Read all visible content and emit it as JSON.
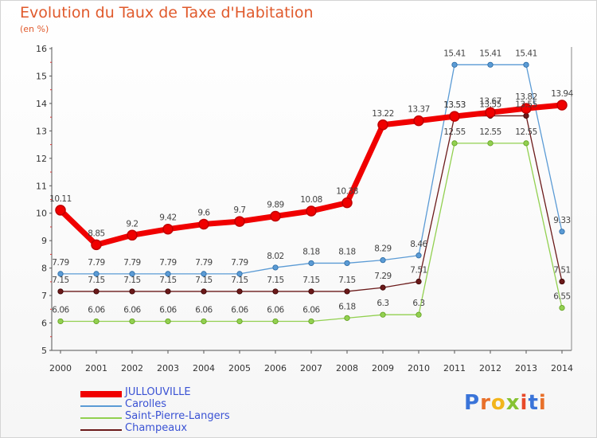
{
  "title": "Evolution du Taux de Taxe d'Habitation",
  "unit_label": "(en %)",
  "logo": {
    "letters": [
      "P",
      "r",
      "o",
      "x",
      "i",
      "t",
      "i"
    ],
    "colors": [
      "#3a74d9",
      "#e8702a",
      "#f2b51c",
      "#86c232",
      "#e84a2a",
      "#3a74d9",
      "#e8702a"
    ]
  },
  "chart_data": {
    "type": "line",
    "title": "Evolution du Taux de Taxe d'Habitation",
    "ylabel": "(en %)",
    "xlabel": "",
    "ylim": [
      5,
      16
    ],
    "yticks": [
      5,
      6,
      7,
      8,
      9,
      10,
      11,
      12,
      13,
      14,
      15,
      16
    ],
    "grid": false,
    "legend_position": "bottom-left",
    "x": [
      "2000",
      "2001",
      "2002",
      "2003",
      "2004",
      "2005",
      "2006",
      "2007",
      "2008",
      "2009",
      "2010",
      "2011",
      "2012",
      "2013",
      "2014"
    ],
    "series": [
      {
        "name": "JULLOUVILLE",
        "color": "#f00000",
        "width": 7,
        "marker": 6,
        "values": [
          10.11,
          8.85,
          9.2,
          9.42,
          9.6,
          9.7,
          9.89,
          10.08,
          10.38,
          13.22,
          13.37,
          13.53,
          13.67,
          13.82,
          13.94
        ]
      },
      {
        "name": "Carolles",
        "color": "#5b9bd5",
        "width": 1.3,
        "marker": 3.2,
        "values": [
          7.79,
          7.79,
          7.79,
          7.79,
          7.79,
          7.79,
          8.02,
          8.18,
          8.18,
          8.29,
          8.46,
          15.41,
          15.41,
          15.41,
          9.33
        ]
      },
      {
        "name": "Saint-Pierre-Langers",
        "color": "#92d050",
        "width": 1.3,
        "marker": 3.2,
        "values": [
          6.06,
          6.06,
          6.06,
          6.06,
          6.06,
          6.06,
          6.06,
          6.06,
          6.18,
          6.3,
          6.3,
          12.55,
          12.55,
          12.55,
          6.55
        ]
      },
      {
        "name": "Champeaux",
        "color": "#6b1a1a",
        "width": 1.3,
        "marker": 3.2,
        "values": [
          7.15,
          7.15,
          7.15,
          7.15,
          7.15,
          7.15,
          7.15,
          7.15,
          7.15,
          7.29,
          7.51,
          13.53,
          13.55,
          13.55,
          7.51
        ]
      }
    ]
  }
}
